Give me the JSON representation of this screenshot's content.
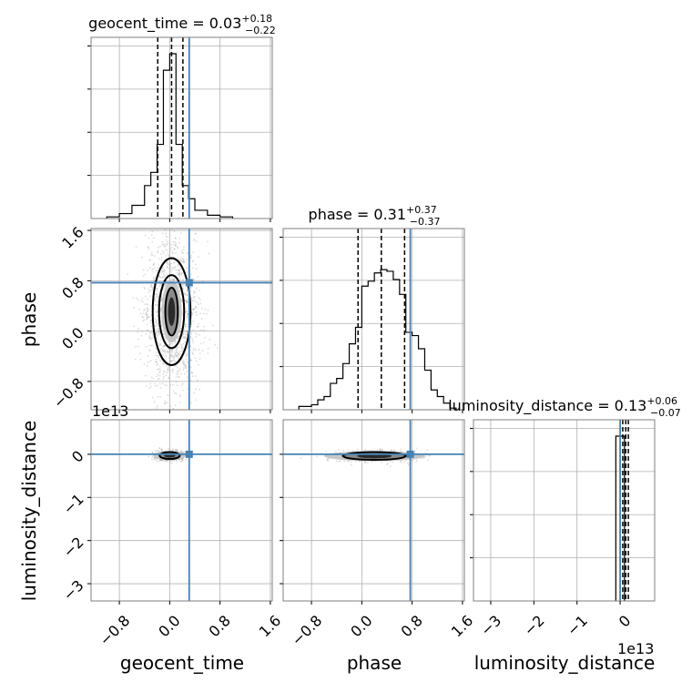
{
  "chart_data": {
    "type": "corner",
    "parameters": [
      "geocent_time",
      "phase",
      "luminosity_distance"
    ],
    "axis_labels": {
      "geocent_time": "geocent_time",
      "phase": "phase",
      "luminosity_distance": "luminosity_distance"
    },
    "titles": [
      {
        "param": "geocent_time",
        "prefix": "geocent_time = ",
        "median": "0.03",
        "plus": "+0.18",
        "minus": "−0.22"
      },
      {
        "param": "phase",
        "prefix": "phase = ",
        "median": "0.31",
        "plus": "+0.37",
        "minus": "−0.37"
      },
      {
        "param": "luminosity_distance",
        "prefix": "luminosity_distance = ",
        "median": "0.13",
        "plus": "+0.06",
        "minus": "−0.07"
      }
    ],
    "ranges": {
      "geocent_time": [
        -1.25,
        1.63
      ],
      "phase": [
        -1.25,
        1.63
      ],
      "luminosity_distance": [
        -3.4,
        0.8
      ]
    },
    "ticks": {
      "geocent_time": [
        "-0.8",
        "0.0",
        "0.8",
        "1.6"
      ],
      "phase": [
        "-0.8",
        "0.0",
        "0.8",
        "1.6"
      ],
      "luminosity_distance": [
        "-3",
        "-2",
        "-1",
        "0"
      ]
    },
    "ticks_display": {
      "geocent_time": [
        "−0.8",
        "0.0",
        "0.8",
        "1.6"
      ],
      "phase": [
        "−0.8",
        "0.0",
        "0.8",
        "1.6"
      ],
      "luminosity_distance": [
        "−3",
        "−2",
        "−1",
        "0"
      ]
    },
    "offset_text": "1e13",
    "truths": {
      "geocent_time": 0.31,
      "phase": 0.77,
      "luminosity_distance": 0.0
    },
    "quantiles": {
      "geocent_time": [
        -0.19,
        0.03,
        0.21
      ],
      "phase": [
        -0.06,
        0.31,
        0.68
      ],
      "luminosity_distance": [
        0.06,
        0.13,
        0.19
      ]
    },
    "histograms": {
      "geocent_time": {
        "edges": [
          -1.0,
          -0.8,
          -0.6,
          -0.4,
          -0.3,
          -0.2,
          -0.1,
          0.0,
          0.1,
          0.2,
          0.3,
          0.4,
          0.6,
          0.8,
          1.0
        ],
        "heights": [
          0.01,
          0.03,
          0.08,
          0.2,
          0.28,
          0.45,
          0.9,
          1.0,
          0.45,
          0.2,
          0.12,
          0.05,
          0.02,
          0.01
        ]
      },
      "phase": {
        "edges": [
          -1.0,
          -0.8,
          -0.7,
          -0.6,
          -0.5,
          -0.4,
          -0.3,
          -0.2,
          -0.1,
          0.0,
          0.1,
          0.2,
          0.3,
          0.4,
          0.5,
          0.6,
          0.7,
          0.8,
          0.9,
          1.0,
          1.1,
          1.2,
          1.3,
          1.4,
          1.5
        ],
        "heights": [
          0.02,
          0.03,
          0.06,
          0.08,
          0.16,
          0.19,
          0.28,
          0.4,
          0.5,
          0.75,
          0.78,
          0.83,
          0.85,
          0.84,
          0.79,
          0.7,
          0.47,
          0.45,
          0.37,
          0.24,
          0.12,
          0.08,
          0.04,
          0.01
        ]
      },
      "luminosity_distance": {
        "edges": [
          -0.1,
          0.0,
          0.1
        ],
        "heights": [
          1.0,
          1.0
        ]
      }
    },
    "contours": {
      "geocent_time-phase": {
        "center": [
          0.03,
          0.31
        ],
        "radii": [
          [
            0.1,
            0.38
          ],
          [
            0.2,
            0.58
          ],
          [
            0.3,
            0.85
          ]
        ]
      },
      "geocent_time-luminosity_distance": {
        "center": [
          0.0,
          -0.03
        ],
        "radii": [
          [
            0.16,
            0.08
          ]
        ]
      },
      "phase-luminosity_distance": {
        "center": [
          0.2,
          -0.04
        ],
        "radii": [
          [
            0.5,
            0.09
          ]
        ]
      }
    }
  }
}
